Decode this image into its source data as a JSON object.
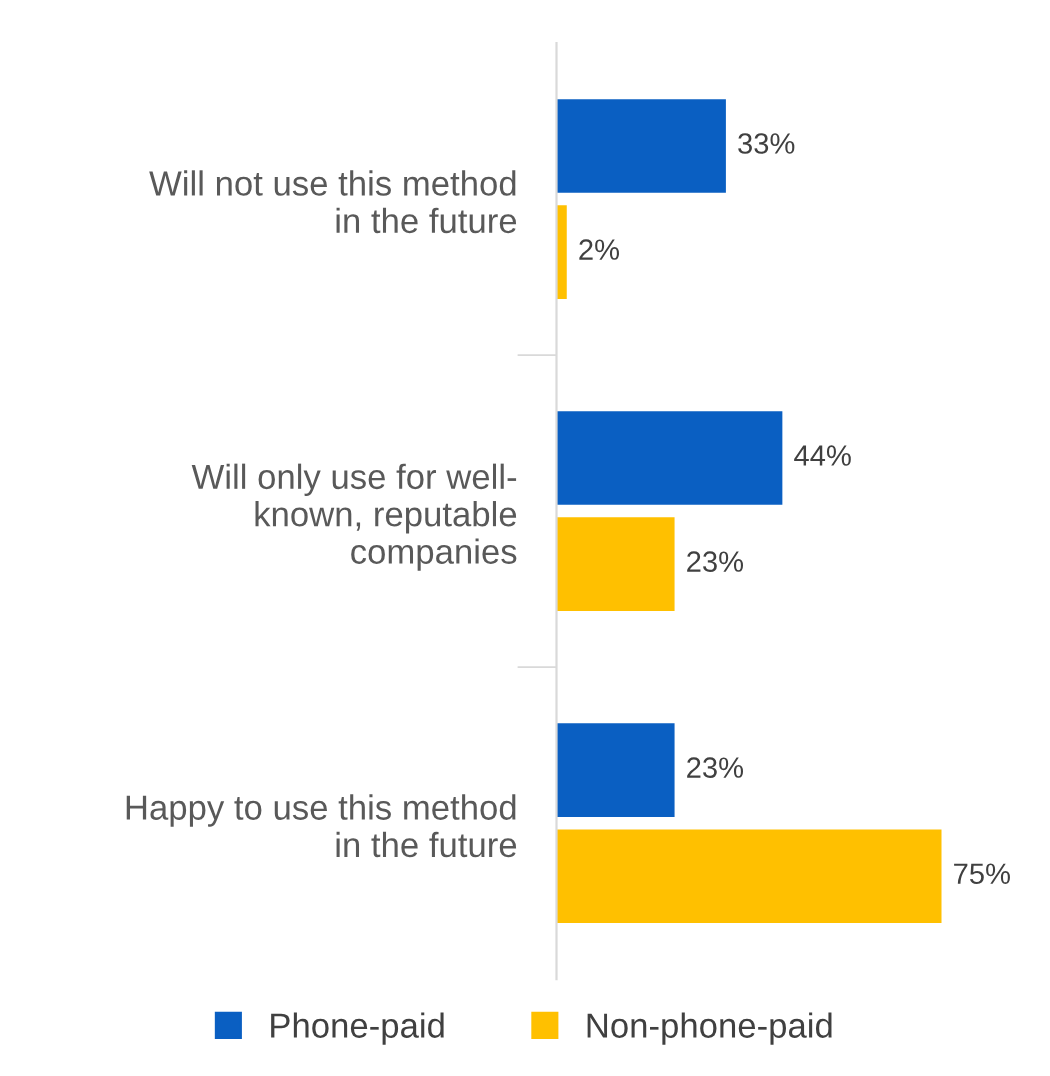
{
  "chart_data": {
    "type": "bar",
    "orientation": "horizontal",
    "categories": [
      "Will not use this method\nin the future",
      "Will only use for well-\nknown, reputable\ncompanies",
      "Happy to use this method\nin the future"
    ],
    "series": [
      {
        "name": "Phone-paid",
        "color": "#0a5fc2",
        "values": [
          33,
          44,
          23
        ],
        "value_labels": [
          "33%",
          "44%",
          "23%"
        ]
      },
      {
        "name": "Non-phone-paid",
        "color": "#ffc000",
        "values": [
          2,
          23,
          75
        ],
        "value_labels": [
          "2%",
          "23%",
          "75%"
        ]
      }
    ],
    "tick_labels": "y",
    "grid": false,
    "legend": "bottom"
  }
}
